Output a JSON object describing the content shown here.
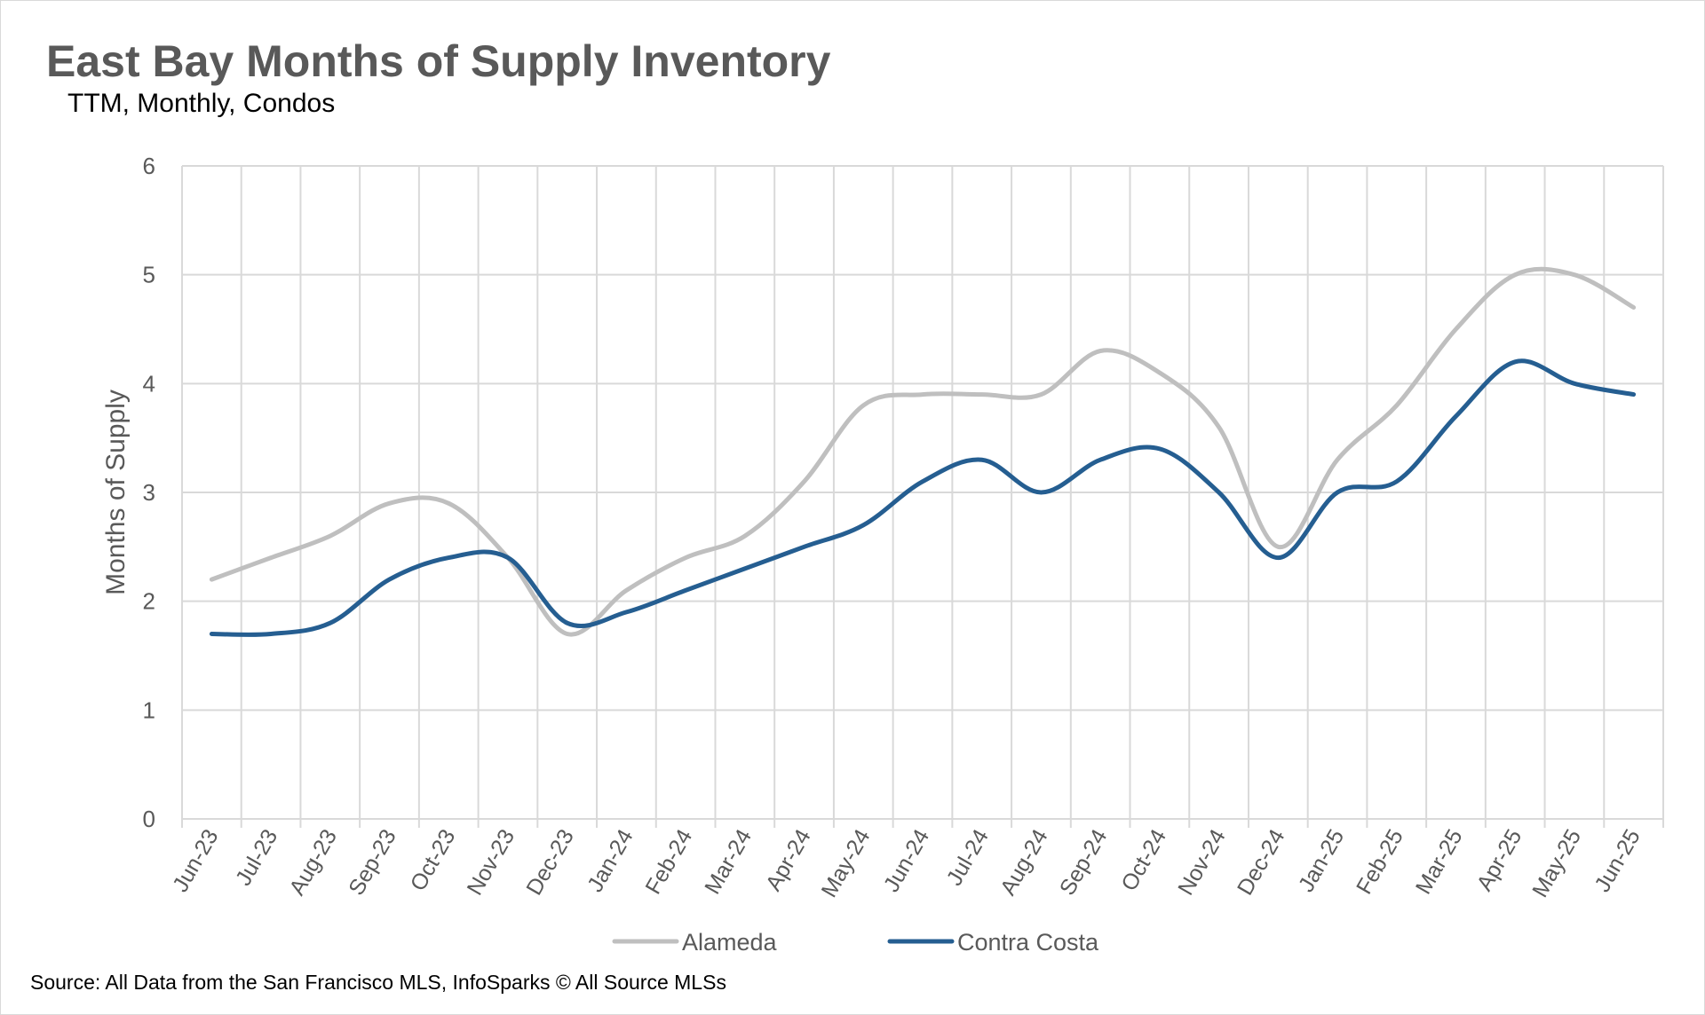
{
  "title": "East Bay Months of Supply Inventory",
  "subtitle": "TTM, Monthly, Condos",
  "source": "Source: All Data from the San Francisco MLS, InfoSparks © All Source MLSs",
  "chart_data": {
    "type": "line",
    "title": "East Bay Months of Supply Inventory",
    "subtitle": "TTM, Monthly, Condos",
    "xlabel": "",
    "ylabel": "Months of Supply",
    "ylim": [
      0,
      6
    ],
    "yticks": [
      "0",
      "1",
      "2",
      "3",
      "4",
      "5",
      "6"
    ],
    "grid": true,
    "legend_position": "bottom",
    "categories": [
      "Jun-23",
      "Jul-23",
      "Aug-23",
      "Sep-23",
      "Oct-23",
      "Nov-23",
      "Dec-23",
      "Jan-24",
      "Feb-24",
      "Mar-24",
      "Apr-24",
      "May-24",
      "Jun-24",
      "Jul-24",
      "Aug-24",
      "Sep-24",
      "Oct-24",
      "Nov-24",
      "Dec-24",
      "Jan-25",
      "Feb-25",
      "Mar-25",
      "Apr-25",
      "May-25",
      "Jun-25"
    ],
    "series": [
      {
        "name": "Alameda",
        "color": "#bfbfbf",
        "values": [
          2.2,
          2.4,
          2.6,
          2.9,
          2.9,
          2.4,
          1.7,
          2.1,
          2.4,
          2.6,
          3.1,
          3.8,
          3.9,
          3.9,
          3.9,
          4.3,
          4.1,
          3.6,
          2.5,
          3.3,
          3.8,
          4.5,
          5.0,
          5.0,
          4.7
        ]
      },
      {
        "name": "Contra Costa",
        "color": "#255e91",
        "values": [
          1.7,
          1.7,
          1.8,
          2.2,
          2.4,
          2.4,
          1.8,
          1.9,
          2.1,
          2.3,
          2.5,
          2.7,
          3.1,
          3.3,
          3.0,
          3.3,
          3.4,
          3.0,
          2.4,
          3.0,
          3.1,
          3.7,
          4.2,
          4.0,
          3.9
        ]
      }
    ]
  }
}
